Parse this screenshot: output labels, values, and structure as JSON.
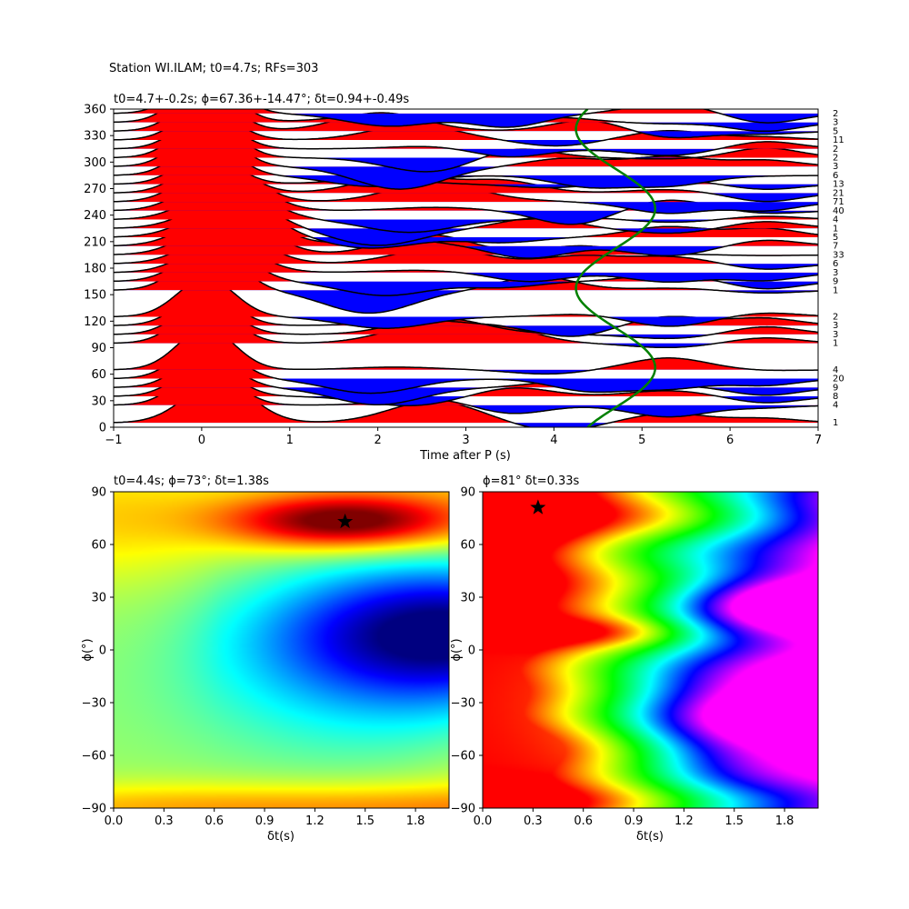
{
  "figure": {
    "suptitle": "Station WI.ILAM; t0=4.7s; RFs=303"
  },
  "chart_data": [
    {
      "type": "line",
      "title": "t0=4.7+-0.2s; ϕ=67.36+-14.47°; δt=0.94+-0.49s",
      "xlabel": "Time after P (s)",
      "ylabel": "",
      "xlim": [
        -1,
        7
      ],
      "ylim": [
        0,
        360
      ],
      "xticks": [
        "−1",
        "0",
        "1",
        "2",
        "3",
        "4",
        "5",
        "6",
        "7"
      ],
      "yticks": [
        "0",
        "30",
        "60",
        "90",
        "120",
        "150",
        "180",
        "210",
        "240",
        "270",
        "300",
        "330",
        "360"
      ],
      "traces": [
        {
          "baz": 5,
          "count": "1"
        },
        {
          "baz": 25,
          "count": "4"
        },
        {
          "baz": 35,
          "count": "8"
        },
        {
          "baz": 45,
          "count": "9"
        },
        {
          "baz": 55,
          "count": "20"
        },
        {
          "baz": 65,
          "count": "4"
        },
        {
          "baz": 95,
          "count": "1"
        },
        {
          "baz": 105,
          "count": "3"
        },
        {
          "baz": 115,
          "count": "3"
        },
        {
          "baz": 125,
          "count": "2"
        },
        {
          "baz": 155,
          "count": "1"
        },
        {
          "baz": 165,
          "count": "9"
        },
        {
          "baz": 175,
          "count": "3"
        },
        {
          "baz": 185,
          "count": "6"
        },
        {
          "baz": 195,
          "count": "33"
        },
        {
          "baz": 205,
          "count": "7"
        },
        {
          "baz": 215,
          "count": "5"
        },
        {
          "baz": 225,
          "count": "1"
        },
        {
          "baz": 235,
          "count": "4"
        },
        {
          "baz": 245,
          "count": "40"
        },
        {
          "baz": 255,
          "count": "71"
        },
        {
          "baz": 265,
          "count": "21"
        },
        {
          "baz": 275,
          "count": "13"
        },
        {
          "baz": 285,
          "count": "6"
        },
        {
          "baz": 295,
          "count": "3"
        },
        {
          "baz": 305,
          "count": "2"
        },
        {
          "baz": 315,
          "count": "2"
        },
        {
          "baz": 325,
          "count": "11"
        },
        {
          "baz": 335,
          "count": "5"
        },
        {
          "baz": 345,
          "count": "3"
        },
        {
          "baz": 355,
          "count": "2"
        }
      ],
      "positive_fill": "#ff0000",
      "negative_fill": "#0000ff",
      "t0_curve": {
        "color": "#008000",
        "t0": 4.7,
        "amplitude_s": 0.45,
        "min_baz_deg": 67.36
      }
    },
    {
      "type": "heatmap",
      "title": "t0=4.4s; ϕ=73°; δt=1.38s",
      "xlabel": "δt(s)",
      "ylabel": "ϕ(°)",
      "xlim": [
        0,
        2
      ],
      "ylim": [
        -90,
        90
      ],
      "xticks": [
        0.0,
        0.3,
        0.6,
        0.9,
        1.2,
        1.5,
        1.8
      ],
      "yticks": [
        -90,
        -60,
        -30,
        0,
        30,
        60,
        90
      ],
      "colormap": "jet",
      "best": {
        "dt": 1.38,
        "phi": 73
      }
    },
    {
      "type": "heatmap",
      "title": "ϕ=81° δt=0.33s",
      "xlabel": "δt(s)",
      "ylabel": "ϕ(°)",
      "xlim": [
        0,
        2
      ],
      "ylim": [
        -90,
        90
      ],
      "xticks": [
        0.0,
        0.3,
        0.6,
        0.9,
        1.2,
        1.5,
        1.8
      ],
      "yticks": [
        -90,
        -60,
        -30,
        0,
        30,
        60,
        90
      ],
      "colormap": "hsv",
      "best": {
        "dt": 0.33,
        "phi": 81
      }
    }
  ]
}
